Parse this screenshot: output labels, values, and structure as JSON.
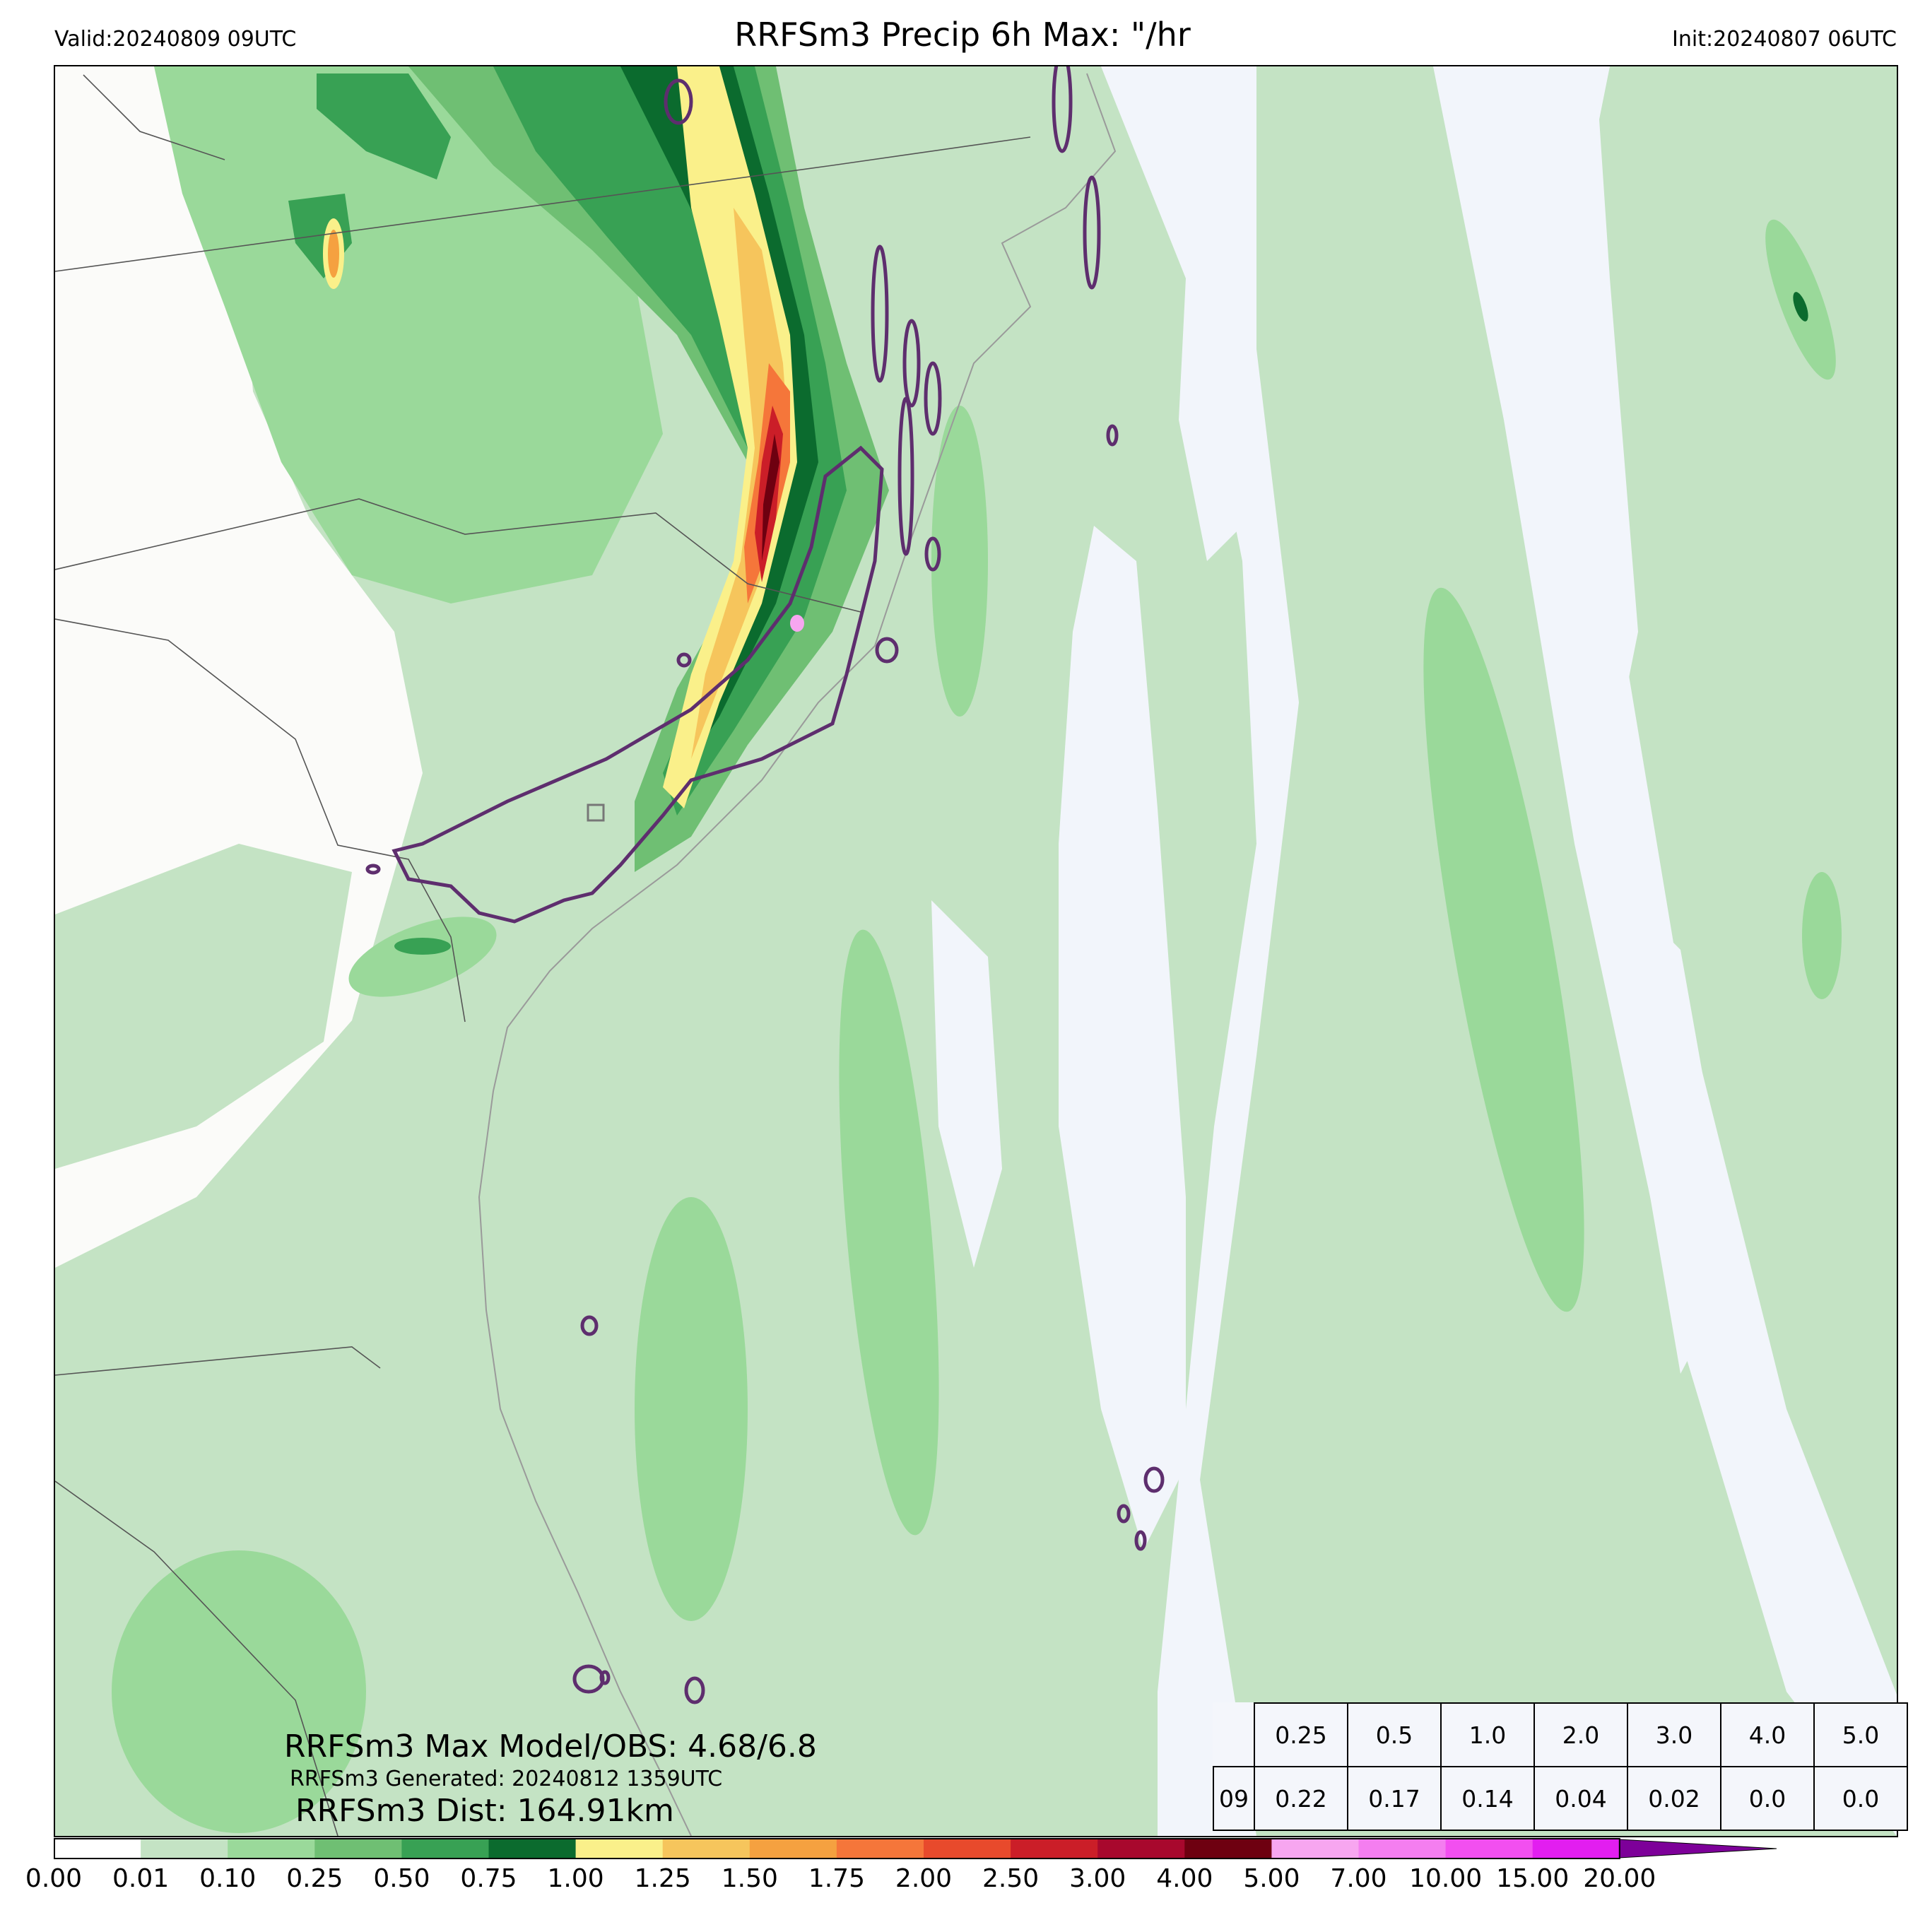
{
  "header": {
    "valid": "Valid:20240809 09UTC",
    "title": "RRFSm3 Precip 6h Max: \"/hr",
    "init": "Init:20240807 06UTC"
  },
  "annotations": {
    "max_model_obs": "RRFSm3 Max Model/OBS: 4.68/6.8",
    "generated": "RRFSm3 Generated: 20240812 1359UTC",
    "distance": "RRFSm3 Dist: 164.91km"
  },
  "threshold_table": {
    "thresholds": [
      "0.25",
      "0.5",
      "1.0",
      "2.0",
      "3.0",
      "4.0",
      "5.0"
    ],
    "row_label": "09",
    "values": [
      "0.22",
      "0.17",
      "0.14",
      "0.04",
      "0.02",
      "0.0",
      "0.0"
    ]
  },
  "colorbar": {
    "ticks": [
      "0.00",
      "0.01",
      "0.10",
      "0.25",
      "0.50",
      "0.75",
      "1.00",
      "1.25",
      "1.50",
      "1.75",
      "2.00",
      "2.50",
      "3.00",
      "4.00",
      "5.00",
      "7.00",
      "10.00",
      "15.00",
      "20.00"
    ],
    "colors": [
      "#ffffff",
      "#c4e3c4",
      "#9ad99a",
      "#6fbf73",
      "#38a154",
      "#0b6b2e",
      "#faf08a",
      "#f6c55c",
      "#f5a140",
      "#f5763a",
      "#e84a2c",
      "#cb1e28",
      "#a8082d",
      "#6e0010",
      "#f7a6f0",
      "#f47ef0",
      "#f24ff0",
      "#e21ef0",
      "#9b00c8"
    ],
    "extend_color": "#7d0099"
  },
  "map_colors": {
    "land": "#fbfbf9",
    "ocean_light": "#f2f5fb",
    "light_green": "#c4e3c4",
    "mid_green": "#9ad99a",
    "green": "#6fbf73",
    "dark_green": "#38a154",
    "darkest_green": "#0b6b2e",
    "yellow": "#faf08a",
    "orange": "#f5a140",
    "red": "#cb1e28",
    "dark_red": "#6e0010",
    "pink": "#f7a6f0",
    "contour": "#5e2e6e",
    "border": "#555555"
  }
}
